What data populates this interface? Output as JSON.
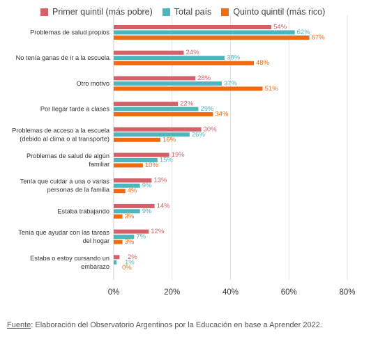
{
  "chart_data": {
    "type": "bar",
    "orientation": "horizontal",
    "categories": [
      [
        "Problemas de salud propios"
      ],
      [
        "No tenía ganas de ir a la escuela"
      ],
      [
        "Otro motivo"
      ],
      [
        "Por llegar tarde a clases"
      ],
      [
        "Problemas de acceso a la escuela",
        "(debido al clima o al transporte)"
      ],
      [
        "Problemas de salud de algún",
        "familiar"
      ],
      [
        "Tenía que cuidar a una o varias",
        "personas de la familia"
      ],
      [
        "Estaba trabajando"
      ],
      [
        "Tenía que ayudar con las tareas",
        "del hogar"
      ],
      [
        "Estaba o estoy cursando un",
        "embarazo"
      ]
    ],
    "series": [
      {
        "name": "Primer quintil (más pobre)",
        "color": "#d4606a",
        "values": [
          54,
          24,
          28,
          22,
          30,
          19,
          13,
          14,
          12,
          2
        ],
        "labels": [
          "54%",
          "24%",
          "28%",
          "22%",
          "30%",
          "19%",
          "13%",
          "14%",
          "12%",
          "2%"
        ]
      },
      {
        "name": "Total país",
        "color": "#4bb7bd",
        "values": [
          62,
          38,
          37,
          29,
          26,
          15,
          9,
          9,
          7,
          1
        ],
        "labels": [
          "62%",
          "38%",
          "37%",
          "29%",
          "26%",
          "15%",
          "9%",
          "9%",
          "7%",
          "1%"
        ]
      },
      {
        "name": "Quinto quintil (más rico)",
        "color": "#f26a10",
        "values": [
          67,
          48,
          51,
          34,
          16,
          10,
          4,
          3,
          3,
          0
        ],
        "labels": [
          "67%",
          "48%",
          "51%",
          "34%",
          "16%",
          "10%",
          "4%",
          "3%",
          "3%",
          "0%"
        ]
      }
    ],
    "xlim": [
      0,
      80
    ],
    "xticks": [
      0,
      20,
      40,
      60,
      80
    ],
    "xtick_labels": [
      "0%",
      "20%",
      "40%",
      "60%",
      "80%"
    ],
    "grid": true,
    "legend_position": "top"
  },
  "source": {
    "label": "Fuente",
    "text": ": Elaboración del Observatorio Argentinos por la Educación en base a Aprender 2022."
  }
}
